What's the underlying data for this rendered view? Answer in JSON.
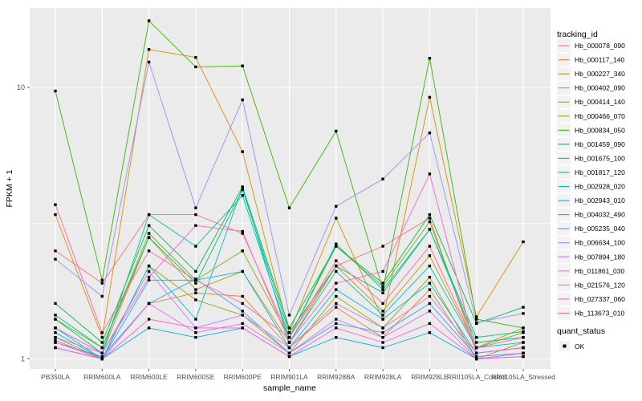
{
  "chart_data": {
    "type": "line",
    "title": "",
    "xlabel": "sample_name",
    "ylabel": "FPKM + 1",
    "y_scale": "log10",
    "ylim": [
      0.93,
      19.6
    ],
    "grid": "on",
    "panel_background": "#EBEBEB",
    "gridline_color": "#FFFFFF",
    "tick_label_color": "#4D4D4D",
    "y_ticks": [
      {
        "label": "10",
        "value": 10
      },
      {
        "label": "1",
        "value": 1
      }
    ],
    "y_minor_gridlines": [
      3.1623
    ],
    "categories": [
      "PB350LA",
      "RRIM600LA",
      "RRIM600LE",
      "RRIM600SE",
      "RRIM600PE",
      "RRIM901LA",
      "RRIM928BA",
      "RRIM928LA",
      "RRIM928LE",
      "RRII105LA_Control",
      "RRII105LA_Stressed"
    ],
    "marker": {
      "shape": "square",
      "color": "#000000"
    },
    "legend": {
      "title": "tracking_id",
      "position": "right",
      "key_background": "#F2F2F2"
    },
    "quant_legend": {
      "title": "quant_status",
      "items": [
        {
          "label": "OK",
          "marker": "black-square"
        }
      ]
    },
    "series": [
      {
        "name": "Hb_000078_090",
        "color": "#F8766D",
        "values": [
          2.5,
          1.9,
          3.4,
          3.4,
          2.9,
          1.2,
          2.2,
          2.6,
          3.3,
          1.05,
          1.1
        ]
      },
      {
        "name": "Hb_000117_140",
        "color": "#EA8331",
        "values": [
          1.17,
          1.0,
          1.6,
          1.75,
          1.7,
          1.1,
          1.55,
          1.2,
          1.8,
          1.0,
          1.05
        ]
      },
      {
        "name": "Hb_000227_340",
        "color": "#D89000",
        "values": [
          3.4,
          1.2,
          13.8,
          12.9,
          5.8,
          1.25,
          3.3,
          1.4,
          9.2,
          1.43,
          2.7
        ]
      },
      {
        "name": "Hb_000402_090",
        "color": "#C09B00",
        "values": [
          1.3,
          1.05,
          2.8,
          1.8,
          2.1,
          1.15,
          2.2,
          1.5,
          2.4,
          1.1,
          1.3
        ]
      },
      {
        "name": "Hb_000414_140",
        "color": "#A3A500",
        "values": [
          1.2,
          1.0,
          2.2,
          1.65,
          1.45,
          1.05,
          1.7,
          1.3,
          2.0,
          1.0,
          1.15
        ]
      },
      {
        "name": "Hb_000466_070",
        "color": "#7CAE00",
        "values": [
          1.4,
          1.1,
          2.9,
          1.95,
          2.5,
          1.2,
          2.6,
          1.85,
          3.2,
          1.1,
          1.25
        ]
      },
      {
        "name": "Hb_000834_050",
        "color": "#39B600",
        "values": [
          9.7,
          1.95,
          17.6,
          11.9,
          12.0,
          3.6,
          6.9,
          1.8,
          12.8,
          1.4,
          1.3
        ]
      },
      {
        "name": "Hb_001459_090",
        "color": "#00BB4E",
        "values": [
          1.6,
          1.15,
          3.1,
          2.1,
          4.3,
          1.3,
          2.6,
          1.9,
          3.4,
          1.35,
          1.55
        ]
      },
      {
        "name": "Hb_001675_100",
        "color": "#00BF7D",
        "values": [
          1.45,
          1.1,
          2.8,
          1.9,
          4.2,
          1.25,
          2.2,
          1.75,
          3.0,
          1.2,
          1.26
        ]
      },
      {
        "name": "Hb_001817_120",
        "color": "#00C1A3",
        "values": [
          1.4,
          1.05,
          3.4,
          2.6,
          4.0,
          1.2,
          2.65,
          1.8,
          3.0,
          1.15,
          1.2
        ]
      },
      {
        "name": "Hb_002928_020",
        "color": "#00BFC4",
        "values": [
          1.3,
          1.0,
          2.2,
          1.4,
          4.3,
          1.15,
          2.1,
          1.45,
          2.2,
          1.1,
          1.15
        ]
      },
      {
        "name": "Hb_002943_010",
        "color": "#00BAE0",
        "values": [
          1.25,
          1.0,
          1.95,
          1.95,
          2.1,
          1.1,
          1.8,
          1.4,
          1.9,
          1.05,
          1.1
        ]
      },
      {
        "name": "Hb_004032_490",
        "color": "#00B0F6",
        "values": [
          1.1,
          1.0,
          1.3,
          1.2,
          1.3,
          1.02,
          1.2,
          1.1,
          1.25,
          1.0,
          1.02
        ]
      },
      {
        "name": "Hb_005235_040",
        "color": "#35A2FF",
        "values": [
          1.15,
          1.02,
          1.6,
          1.97,
          1.5,
          1.05,
          1.35,
          1.25,
          1.6,
          1.02,
          1.05
        ]
      },
      {
        "name": "Hb_006634_100",
        "color": "#9590FF",
        "values": [
          2.33,
          1.7,
          12.4,
          3.6,
          9.0,
          1.45,
          3.65,
          4.6,
          6.8,
          1.36,
          1.47
        ]
      },
      {
        "name": "Hb_007894_180",
        "color": "#C77CFF",
        "values": [
          1.2,
          1.05,
          2.1,
          1.3,
          1.45,
          1.1,
          1.6,
          1.3,
          1.7,
          1.05,
          1.1
        ]
      },
      {
        "name": "Hb_011861_030",
        "color": "#E76BF3",
        "values": [
          1.15,
          1.0,
          1.6,
          1.25,
          1.35,
          1.05,
          1.4,
          1.2,
          1.5,
          1.0,
          1.05
        ]
      },
      {
        "name": "Hb_021576_120",
        "color": "#FA62DB",
        "values": [
          1.1,
          1.0,
          1.4,
          1.3,
          1.3,
          1.02,
          1.3,
          1.15,
          1.35,
          1.0,
          1.02
        ]
      },
      {
        "name": "Hb_027337_060",
        "color": "#FF61CC",
        "values": [
          1.3,
          1.05,
          2.0,
          3.1,
          2.95,
          1.15,
          1.9,
          2.1,
          4.8,
          1.05,
          1.1
        ]
      },
      {
        "name": "Hb_113673_010",
        "color": "#FF67A4",
        "values": [
          3.7,
          1.25,
          2.5,
          1.95,
          1.6,
          1.2,
          2.3,
          1.6,
          2.6,
          1.1,
          1.2
        ]
      }
    ]
  }
}
